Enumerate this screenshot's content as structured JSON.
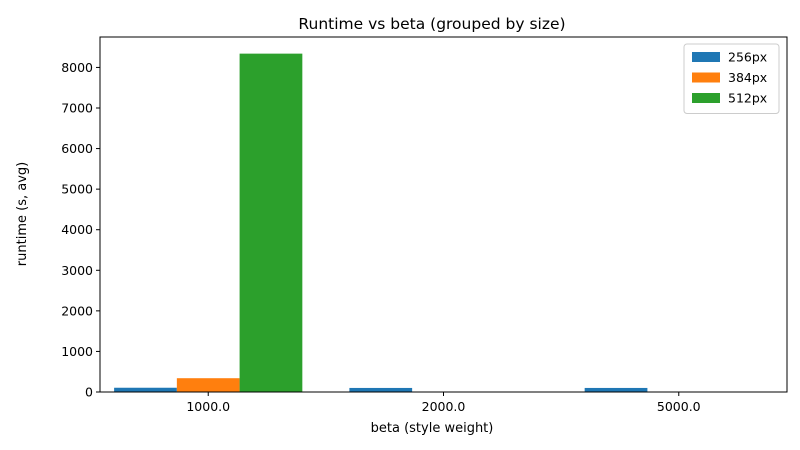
{
  "chart_data": {
    "type": "bar",
    "title": "Runtime vs beta (grouped by size)",
    "xlabel": "beta (style weight)",
    "ylabel": "runtime (s, avg)",
    "categories": [
      "1000.0",
      "2000.0",
      "5000.0"
    ],
    "series": [
      {
        "name": "256px",
        "color": "#1f77b4",
        "values": [
          105,
          100,
          100
        ]
      },
      {
        "name": "384px",
        "color": "#ff7f0e",
        "values": [
          340,
          null,
          null
        ]
      },
      {
        "name": "512px",
        "color": "#2ca02c",
        "values": [
          8340,
          null,
          null
        ]
      }
    ],
    "ylim": [
      0,
      8750
    ],
    "yticks": [
      0,
      1000,
      2000,
      3000,
      4000,
      5000,
      6000,
      7000,
      8000
    ],
    "ytick_labels": [
      "0",
      "1000",
      "2000",
      "3000",
      "4000",
      "5000",
      "6000",
      "7000",
      "8000"
    ],
    "grid": false,
    "legend_position": "top-right"
  }
}
